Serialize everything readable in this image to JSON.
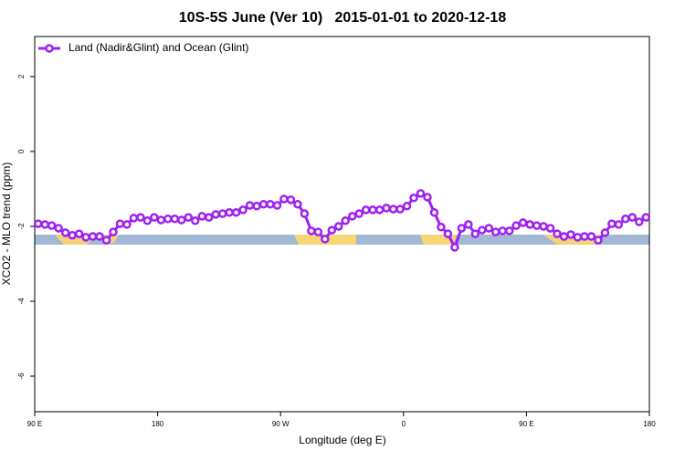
{
  "chart_data": {
    "type": "line",
    "title": "10S-5S June (Ver 10)   2015-01-01 to 2020-12-18",
    "x_label": "Longitude (deg E)",
    "y_label": "XCO2 - MLO trend (ppm)",
    "xlim": [
      90,
      540
    ],
    "xticks": [
      {
        "value": 90,
        "label": "90 E"
      },
      {
        "value": 180,
        "label": "180"
      },
      {
        "value": 270,
        "label": "90 W"
      },
      {
        "value": 360,
        "label": "0"
      },
      {
        "value": 450,
        "label": "90 E"
      },
      {
        "value": 540,
        "label": "180"
      }
    ],
    "ylim": [
      -6.95,
      3.07
    ],
    "yticks": [
      -6,
      -4,
      -2,
      0,
      2
    ],
    "legend": "top-left",
    "x": [
      92.5,
      97.5,
      102.5,
      107.5,
      112.5,
      117.5,
      122.5,
      127.5,
      132.5,
      137.5,
      142.5,
      147.5,
      152.5,
      157.5,
      162.5,
      167.5,
      172.5,
      177.5,
      182.5,
      187.5,
      192.5,
      197.5,
      202.5,
      207.5,
      212.5,
      217.5,
      222.5,
      227.5,
      232.5,
      237.5,
      242.5,
      247.5,
      252.5,
      257.5,
      262.5,
      267.5,
      272.5,
      277.5,
      282.5,
      287.5,
      292.5,
      297.5,
      302.5,
      307.5,
      312.5,
      317.5,
      322.5,
      327.5,
      332.5,
      337.5,
      342.5,
      347.5,
      352.5,
      357.5,
      362.5,
      367.5,
      372.5,
      377.5,
      382.5,
      387.5,
      392.5,
      397.5,
      402.5,
      407.5,
      412.5,
      417.5,
      422.5,
      427.5,
      432.5,
      437.5,
      442.5,
      447.5,
      452.5,
      457.5,
      462.5,
      467.5,
      472.5,
      477.5,
      482.5,
      487.5,
      492.5,
      497.5,
      502.5,
      507.5,
      512.5,
      517.5,
      522.5,
      527.5,
      532.5,
      537.5
    ],
    "series": [
      {
        "name": "Land (Nadir&Glint) and Ocean (Glint)",
        "color": "#a020f0",
        "values": [
          -1.93,
          -1.95,
          -1.98,
          -2.05,
          -2.17,
          -2.24,
          -2.2,
          -2.29,
          -2.27,
          -2.27,
          -2.37,
          -2.15,
          -1.93,
          -1.95,
          -1.78,
          -1.76,
          -1.85,
          -1.76,
          -1.83,
          -1.8,
          -1.8,
          -1.83,
          -1.76,
          -1.85,
          -1.73,
          -1.76,
          -1.68,
          -1.66,
          -1.63,
          -1.63,
          -1.56,
          -1.44,
          -1.46,
          -1.41,
          -1.41,
          -1.44,
          -1.27,
          -1.29,
          -1.41,
          -1.66,
          -2.12,
          -2.15,
          -2.34,
          -2.1,
          -2.0,
          -1.85,
          -1.73,
          -1.66,
          -1.56,
          -1.56,
          -1.56,
          -1.51,
          -1.54,
          -1.54,
          -1.46,
          -1.24,
          -1.12,
          -1.22,
          -1.63,
          -2.02,
          -2.2,
          -2.56,
          -2.05,
          -1.95,
          -2.2,
          -2.1,
          -2.05,
          -2.15,
          -2.12,
          -2.12,
          -1.98,
          -1.9,
          -1.95,
          -1.98,
          -2.0,
          -2.05,
          -2.2,
          -2.27,
          -2.22,
          -2.29,
          -2.27,
          -2.27,
          -2.37,
          -2.17,
          -1.93,
          -1.95,
          -1.8,
          -1.76,
          -1.88,
          -1.76
        ]
      }
    ]
  }
}
